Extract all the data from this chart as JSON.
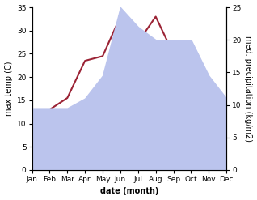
{
  "months": [
    "Jan",
    "Feb",
    "Mar",
    "Apr",
    "May",
    "Jun",
    "Jul",
    "Aug",
    "Sep",
    "Oct",
    "Nov",
    "Dec"
  ],
  "temperature": [
    8.5,
    13.0,
    15.5,
    23.5,
    24.5,
    33.0,
    27.5,
    33.0,
    25.0,
    18.0,
    10.0,
    9.0
  ],
  "precipitation": [
    9.5,
    9.5,
    9.5,
    11.0,
    14.5,
    25.0,
    22.0,
    20.0,
    20.0,
    20.0,
    14.5,
    11.0
  ],
  "temp_color": "#9b2335",
  "precip_fill_color": "#bbc4ed",
  "ylabel_left": "max temp (C)",
  "ylabel_right": "med. precipitation (kg/m2)",
  "xlabel": "date (month)",
  "ylim_left": [
    0,
    35
  ],
  "ylim_right": [
    0,
    25
  ],
  "yticks_left": [
    0,
    5,
    10,
    15,
    20,
    25,
    30,
    35
  ],
  "yticks_right": [
    0,
    5,
    10,
    15,
    20,
    25
  ],
  "bg_color": "#ffffff",
  "line_width": 1.5,
  "label_fontsize": 7,
  "tick_fontsize": 6.5
}
